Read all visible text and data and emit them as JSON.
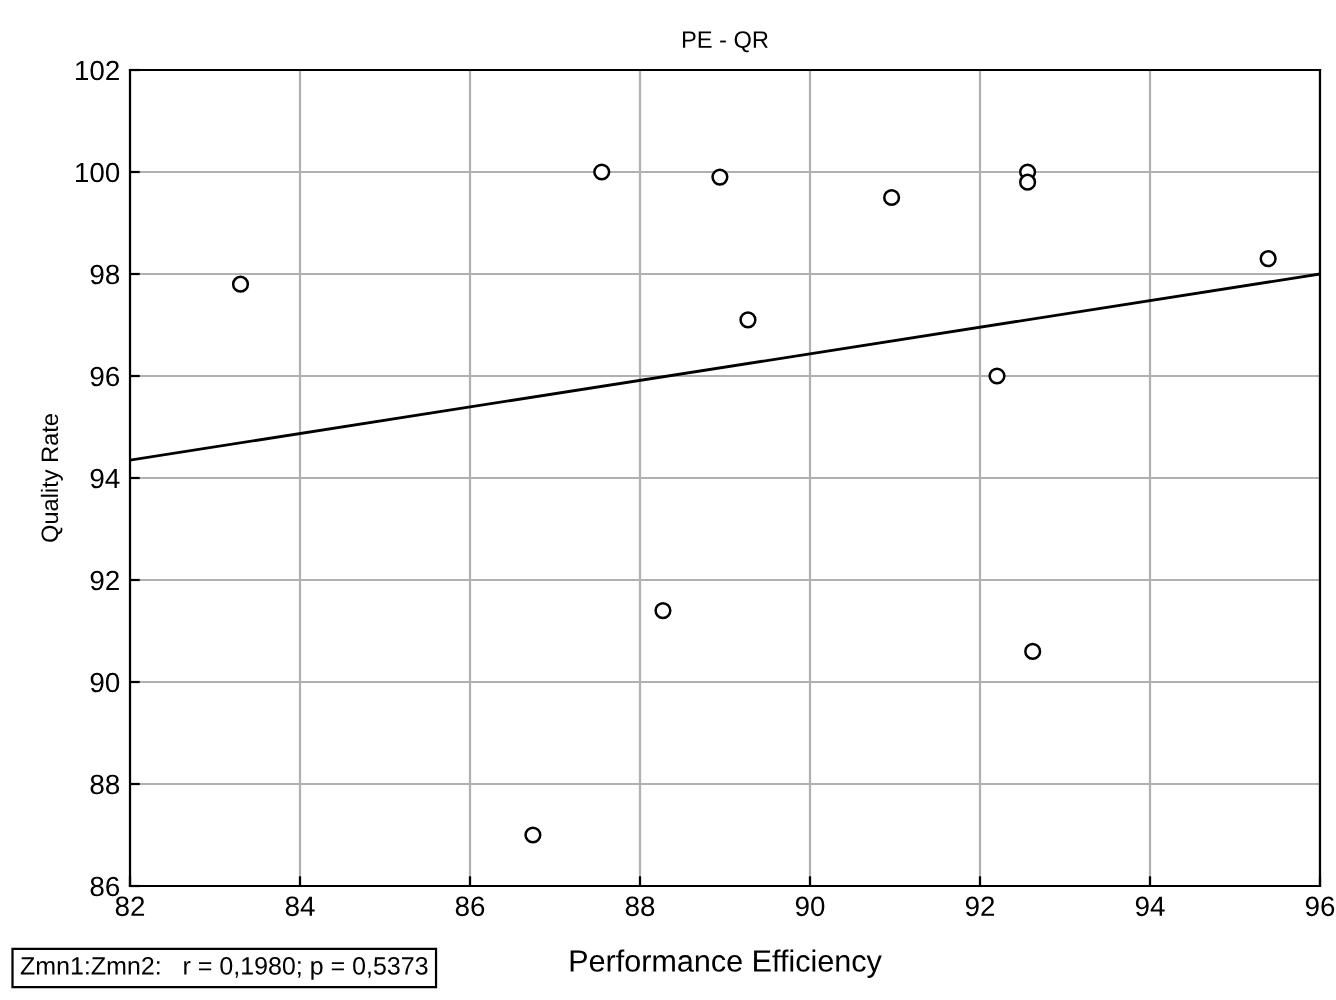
{
  "chart_data": {
    "type": "scatter",
    "title": "PE - QR",
    "xlabel": "Performance Efficiency",
    "ylabel": "Quality Rate",
    "series": [
      {
        "color": "#000000",
        "marker": "circle",
        "x": [
          83.3,
          87.55,
          88.94,
          89.27,
          90.96,
          92.56,
          92.56,
          92.2,
          95.39,
          88.27,
          86.74,
          92.62
        ],
        "values": [
          97.8,
          100.0,
          99.9,
          97.1,
          99.5,
          100.0,
          99.8,
          96.0,
          98.3,
          91.4,
          87.0,
          90.6
        ]
      },
      {
        "type": "line",
        "color": "#000000",
        "marker": "none",
        "line_style": "solid",
        "x": [
          82,
          96
        ],
        "values": [
          94.35,
          98.0
        ]
      }
    ],
    "xlim": [
      82,
      96
    ],
    "xticks": [
      82,
      84,
      86,
      88,
      90,
      92,
      94,
      96
    ],
    "ylim": [
      86,
      102
    ],
    "yticks": [
      86,
      88,
      90,
      92,
      94,
      96,
      98,
      100,
      102
    ],
    "grid": true,
    "annotations": [
      "Zmn1:Zmn2:   r = 0,1980; p = 0,5373"
    ]
  }
}
